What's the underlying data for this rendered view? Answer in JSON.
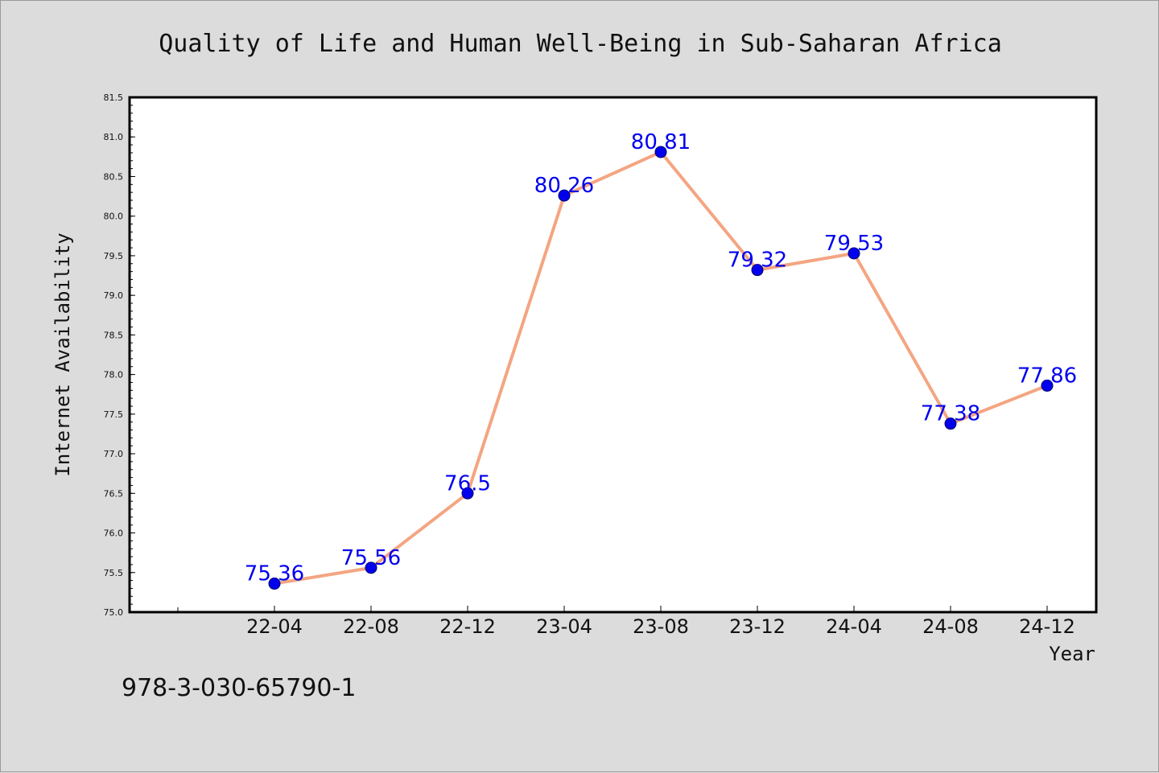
{
  "chart_data": {
    "type": "line",
    "title": "Quality of Life and Human Well-Being in Sub-Saharan Africa",
    "xlabel": "Year",
    "ylabel": "Internet Availability",
    "categories": [
      "22-04",
      "22-08",
      "22-12",
      "23-04",
      "23-08",
      "23-12",
      "24-04",
      "24-08",
      "24-12"
    ],
    "values": [
      75.36,
      75.56,
      76.5,
      80.26,
      80.81,
      79.32,
      79.53,
      77.38,
      77.86
    ],
    "data_labels": [
      "75.36",
      "75.56",
      "76.5",
      "80.26",
      "80.81",
      "79.32",
      "79.53",
      "77.38",
      "77.86"
    ],
    "ylim": [
      75.0,
      81.5
    ],
    "yticks": [
      "75.0",
      "75.5",
      "76.0",
      "76.5",
      "77.0",
      "77.5",
      "78.0",
      "78.5",
      "79.0",
      "79.5",
      "80.0",
      "80.5",
      "81.0",
      "81.5"
    ],
    "grid": false,
    "line_color": "#f4a582",
    "marker_color": "#0000ee",
    "label_color": "#0000ee"
  },
  "footer_text": "978-3-030-65790-1"
}
